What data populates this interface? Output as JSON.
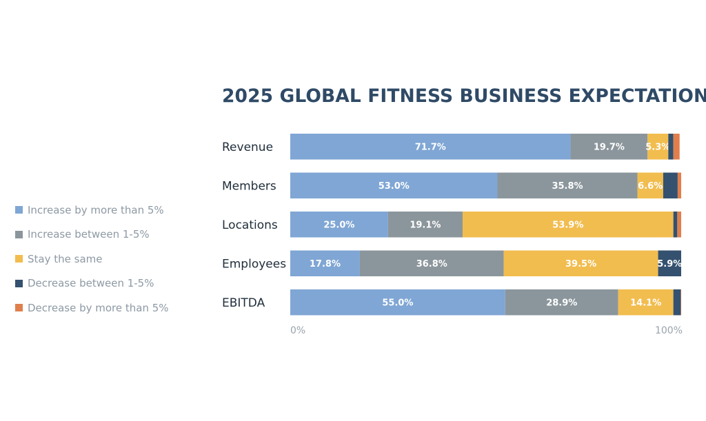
{
  "chart_data": {
    "type": "bar",
    "orientation": "horizontal",
    "stacked": true,
    "title": "2025 GLOBAL FITNESS BUSINESS EXPECTATIONS",
    "categories": [
      "Revenue",
      "Members",
      "Locations",
      "Employees",
      "EBITDA"
    ],
    "series": [
      {
        "name": "Increase by more than 5%",
        "color": "#7fa6d4",
        "values": [
          71.7,
          53.0,
          25.0,
          17.8,
          55.0
        ],
        "labels": [
          "71.7%",
          "53.0%",
          "25.0%",
          "17.8%",
          "55.0%"
        ]
      },
      {
        "name": "Increase between 1-5%",
        "color": "#8b969c",
        "values": [
          19.7,
          35.8,
          19.1,
          36.8,
          28.9
        ],
        "labels": [
          "19.7%",
          "35.8%",
          "19.1%",
          "36.8%",
          "28.9%"
        ]
      },
      {
        "name": "Stay the same",
        "color": "#f2bd4f",
        "values": [
          5.3,
          6.6,
          53.9,
          39.5,
          14.1
        ],
        "labels": [
          "5.3%",
          "6.6%",
          "53.9%",
          "39.5%",
          "14.1%"
        ]
      },
      {
        "name": "Decrease between 1-5%",
        "color": "#34516f",
        "values": [
          1.3,
          3.7,
          1.0,
          5.9,
          1.9
        ],
        "labels": [
          "",
          "",
          "",
          "5.9%",
          ""
        ]
      },
      {
        "name": "Decrease by more than 5%",
        "color": "#e07f4c",
        "values": [
          1.6,
          0.9,
          1.0,
          0.0,
          0.1
        ],
        "labels": [
          "",
          "",
          "",
          "",
          ""
        ]
      }
    ],
    "xlim": [
      0,
      100
    ],
    "ticks": [
      "0%",
      "100%"
    ],
    "legend_position": "left",
    "grid": false
  }
}
